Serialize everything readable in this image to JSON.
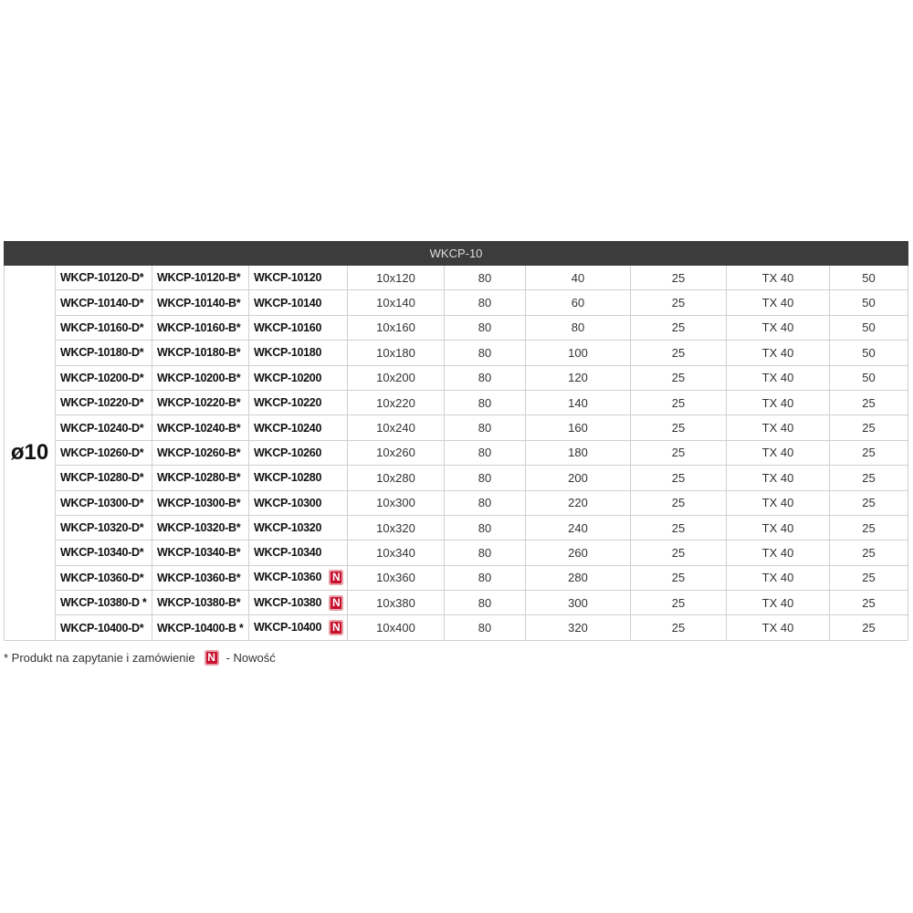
{
  "table": {
    "header": "WKCP-10",
    "diameter": "ø10",
    "badge": "N",
    "rows": [
      {
        "cells": [
          "WKCP-10120-D*",
          "WKCP-10120-B*",
          "WKCP-10120",
          "10x120",
          80,
          40,
          25,
          "TX 40",
          50
        ],
        "new": false
      },
      {
        "cells": [
          "WKCP-10140-D*",
          "WKCP-10140-B*",
          "WKCP-10140",
          "10x140",
          80,
          60,
          25,
          "TX 40",
          50
        ],
        "new": false
      },
      {
        "cells": [
          "WKCP-10160-D*",
          "WKCP-10160-B*",
          "WKCP-10160",
          "10x160",
          80,
          80,
          25,
          "TX 40",
          50
        ],
        "new": false
      },
      {
        "cells": [
          "WKCP-10180-D*",
          "WKCP-10180-B*",
          "WKCP-10180",
          "10x180",
          80,
          100,
          25,
          "TX 40",
          50
        ],
        "new": false
      },
      {
        "cells": [
          "WKCP-10200-D*",
          "WKCP-10200-B*",
          "WKCP-10200",
          "10x200",
          80,
          120,
          25,
          "TX 40",
          50
        ],
        "new": false
      },
      {
        "cells": [
          "WKCP-10220-D*",
          "WKCP-10220-B*",
          "WKCP-10220",
          "10x220",
          80,
          140,
          25,
          "TX 40",
          25
        ],
        "new": false
      },
      {
        "cells": [
          "WKCP-10240-D*",
          "WKCP-10240-B*",
          "WKCP-10240",
          "10x240",
          80,
          160,
          25,
          "TX 40",
          25
        ],
        "new": false
      },
      {
        "cells": [
          "WKCP-10260-D*",
          "WKCP-10260-B*",
          "WKCP-10260",
          "10x260",
          80,
          180,
          25,
          "TX 40",
          25
        ],
        "new": false
      },
      {
        "cells": [
          "WKCP-10280-D*",
          "WKCP-10280-B*",
          "WKCP-10280",
          "10x280",
          80,
          200,
          25,
          "TX 40",
          25
        ],
        "new": false
      },
      {
        "cells": [
          "WKCP-10300-D*",
          "WKCP-10300-B*",
          "WKCP-10300",
          "10x300",
          80,
          220,
          25,
          "TX 40",
          25
        ],
        "new": false
      },
      {
        "cells": [
          "WKCP-10320-D*",
          "WKCP-10320-B*",
          "WKCP-10320",
          "10x320",
          80,
          240,
          25,
          "TX 40",
          25
        ],
        "new": false
      },
      {
        "cells": [
          "WKCP-10340-D*",
          "WKCP-10340-B*",
          "WKCP-10340",
          "10x340",
          80,
          260,
          25,
          "TX 40",
          25
        ],
        "new": false
      },
      {
        "cells": [
          "WKCP-10360-D*",
          "WKCP-10360-B*",
          "WKCP-10360",
          "10x360",
          80,
          280,
          25,
          "TX 40",
          25
        ],
        "new": true
      },
      {
        "cells": [
          "WKCP-10380-D *",
          "WKCP-10380-B*",
          "WKCP-10380",
          "10x380",
          80,
          300,
          25,
          "TX 40",
          25
        ],
        "new": true
      },
      {
        "cells": [
          "WKCP-10400-D*",
          "WKCP-10400-B *",
          "WKCP-10400",
          "10x400",
          80,
          320,
          25,
          "TX 40",
          25
        ],
        "new": true
      }
    ]
  },
  "footnote": {
    "text": "* Produkt na zapytanie i zamówienie",
    "badge": "N",
    "legend": "- Nowość"
  }
}
